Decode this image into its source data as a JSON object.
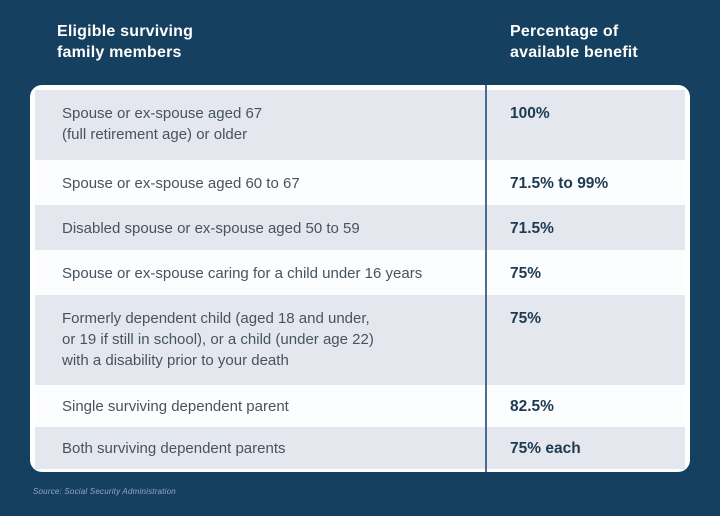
{
  "header": {
    "col_members": "Eligible surviving\nfamily members",
    "col_benefit": "Percentage of\navailable benefit"
  },
  "table": {
    "rows": [
      {
        "member": "Spouse or ex-spouse aged 67\n(full retirement age) or older",
        "benefit": "100%"
      },
      {
        "member": "Spouse or ex-spouse aged 60 to 67",
        "benefit": "71.5% to 99%"
      },
      {
        "member": "Disabled spouse or ex-spouse aged 50 to 59",
        "benefit": "71.5%"
      },
      {
        "member": "Spouse or ex-spouse caring for a child under 16 years",
        "benefit": "75%"
      },
      {
        "member": "Formerly dependent child (aged 18 and under,\nor 19 if still in school), or a child (under age 22)\nwith a disability prior to your death",
        "benefit": "75%"
      },
      {
        "member": "Single surviving dependent parent",
        "benefit": "82.5%"
      },
      {
        "member": "Both surviving dependent parents",
        "benefit": "75% each"
      }
    ]
  },
  "footer": {
    "source": "Source: Social Security Administration"
  },
  "colors": {
    "background": "#15405f",
    "card": "#ffffff",
    "row_shade": "#e4e8ee",
    "row_plain": "#fcfdfe",
    "column_divider": "#4b6d91",
    "member_text": "#47535d",
    "benefit_text": "#1d3a52",
    "header_text": "#ffffff",
    "source_text": "#93a9bd"
  },
  "chart_data": {
    "type": "table",
    "columns": [
      "Eligible surviving family members",
      "Percentage of available benefit"
    ],
    "rows": [
      [
        "Spouse or ex-spouse aged 67 (full retirement age) or older",
        "100%"
      ],
      [
        "Spouse or ex-spouse aged 60 to 67",
        "71.5% to 99%"
      ],
      [
        "Disabled spouse or ex-spouse aged 50 to 59",
        "71.5%"
      ],
      [
        "Spouse or ex-spouse caring for a child under 16 years",
        "75%"
      ],
      [
        "Formerly dependent child (aged 18 and under, or 19 if still in school), or a child (under age 22) with a disability prior to your death",
        "75%"
      ],
      [
        "Single surviving dependent parent",
        "82.5%"
      ],
      [
        "Both surviving dependent parents",
        "75% each"
      ]
    ],
    "source": "Source: Social Security Administration",
    "layout": {
      "alternating_row_shading": true,
      "vertical_divider_between_columns": true
    }
  }
}
